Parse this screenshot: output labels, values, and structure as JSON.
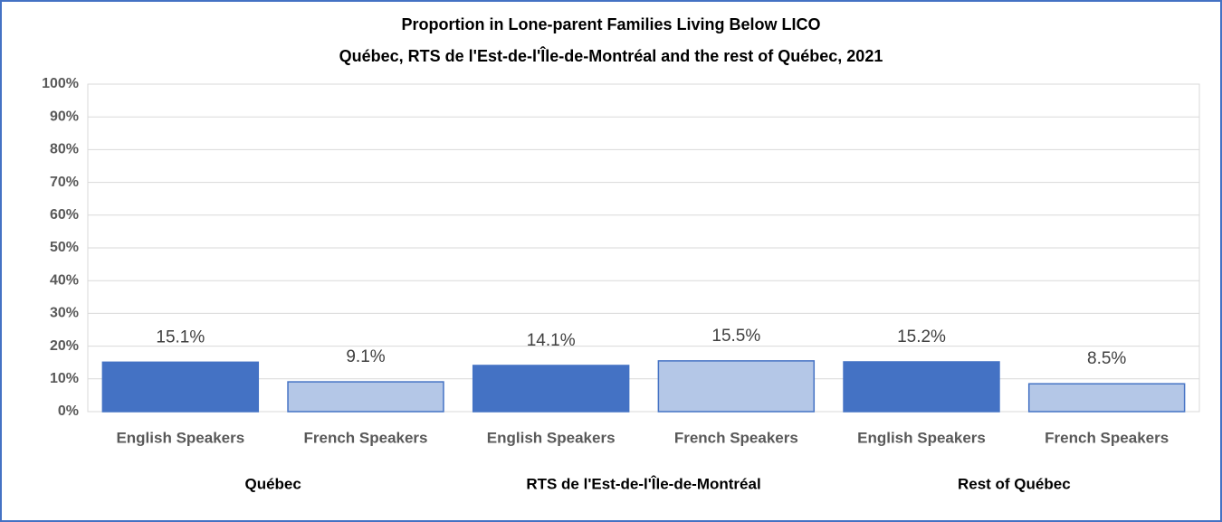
{
  "chart_data": {
    "type": "bar",
    "title": "Proportion in Lone-parent Families Living Below LICO",
    "subtitle": "Québec, RTS de l'Est-de-l'Île-de-Montréal and the rest of Québec, 2021",
    "categories": [
      "Québec",
      "RTS de l'Est-de-l'Île-de-Montréal",
      "Rest of Québec"
    ],
    "series": [
      {
        "name": "English Speakers",
        "color": "#4472c4",
        "values": [
          15.1,
          14.1,
          15.2
        ],
        "value_labels": [
          "15.1%",
          "14.1%",
          "15.2%"
        ]
      },
      {
        "name": "French Speakers",
        "color": "#b4c7e7",
        "values": [
          9.1,
          15.5,
          8.5
        ],
        "value_labels": [
          "9.1%",
          "15.5%",
          "8.5%"
        ]
      }
    ],
    "ylim": [
      0,
      100
    ],
    "yticks": [
      {
        "value": 0,
        "label": "0%"
      },
      {
        "value": 10,
        "label": "10%"
      },
      {
        "value": 20,
        "label": "20%"
      },
      {
        "value": 30,
        "label": "30%"
      },
      {
        "value": 40,
        "label": "40%"
      },
      {
        "value": 50,
        "label": "50%"
      },
      {
        "value": 60,
        "label": "60%"
      },
      {
        "value": 70,
        "label": "70%"
      },
      {
        "value": 80,
        "label": "80%"
      },
      {
        "value": 90,
        "label": "90%"
      },
      {
        "value": 100,
        "label": "100%"
      }
    ],
    "grid": true
  }
}
